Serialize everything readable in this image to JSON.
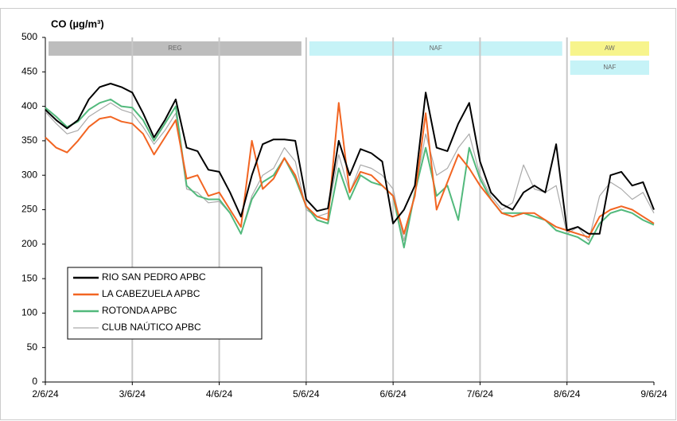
{
  "chart_data": {
    "type": "line",
    "title": "CO (µg/m³)",
    "categories": [
      "2/6/24",
      null,
      null,
      null,
      null,
      null,
      null,
      null,
      "3/6/24",
      null,
      null,
      null,
      null,
      null,
      null,
      null,
      "4/6/24",
      null,
      null,
      null,
      null,
      null,
      null,
      null,
      "5/6/24",
      null,
      null,
      null,
      null,
      null,
      null,
      null,
      "6/6/24",
      null,
      null,
      null,
      null,
      null,
      null,
      null,
      "7/6/24",
      null,
      null,
      null,
      null,
      null,
      null,
      null,
      "8/6/24",
      null,
      null,
      null,
      null,
      null,
      null,
      null,
      "9/6/24"
    ],
    "series": [
      {
        "name": "RIO SAN PEDRO APBC",
        "color": "#000000",
        "values": [
          395,
          380,
          368,
          380,
          410,
          428,
          433,
          428,
          420,
          390,
          355,
          380,
          410,
          340,
          335,
          308,
          305,
          275,
          240,
          300,
          345,
          352,
          352,
          350,
          265,
          248,
          252,
          350,
          300,
          338,
          332,
          320,
          230,
          250,
          285,
          420,
          340,
          335,
          375,
          405,
          320,
          275,
          258,
          250,
          275,
          285,
          275,
          345,
          220,
          225,
          215,
          215,
          300,
          305,
          285,
          290,
          250
        ]
      },
      {
        "name": "LA CABEZUELA  APBC",
        "color": "#f26522",
        "values": [
          355,
          340,
          333,
          350,
          370,
          382,
          385,
          378,
          375,
          360,
          330,
          355,
          380,
          295,
          300,
          270,
          275,
          250,
          225,
          350,
          280,
          295,
          325,
          300,
          255,
          240,
          235,
          405,
          275,
          305,
          300,
          285,
          270,
          215,
          270,
          390,
          250,
          290,
          330,
          310,
          285,
          265,
          245,
          240,
          245,
          245,
          235,
          225,
          220,
          215,
          210,
          240,
          250,
          255,
          250,
          240,
          230
        ]
      },
      {
        "name": "ROTONDA  APBC",
        "color": "#52b97c",
        "values": [
          398,
          385,
          370,
          378,
          395,
          405,
          410,
          400,
          398,
          380,
          350,
          375,
          400,
          285,
          270,
          265,
          265,
          245,
          215,
          265,
          290,
          300,
          325,
          295,
          255,
          235,
          230,
          310,
          265,
          300,
          290,
          285,
          270,
          195,
          275,
          340,
          270,
          285,
          235,
          340,
          295,
          265,
          245,
          245,
          245,
          240,
          235,
          220,
          215,
          210,
          200,
          230,
          245,
          250,
          245,
          235,
          228
        ]
      },
      {
        "name": "CLUB NAÚTICO  APBC",
        "color": "#aaaaaa",
        "values": [
          392,
          375,
          360,
          365,
          385,
          395,
          405,
          395,
          390,
          370,
          345,
          365,
          390,
          280,
          275,
          260,
          262,
          245,
          215,
          270,
          300,
          310,
          340,
          320,
          250,
          240,
          245,
          330,
          275,
          315,
          310,
          300,
          280,
          205,
          275,
          360,
          300,
          310,
          340,
          360,
          300,
          270,
          250,
          260,
          315,
          280,
          275,
          285,
          215,
          225,
          205,
          270,
          290,
          280,
          265,
          275,
          245
        ]
      }
    ],
    "ylim": [
      0,
      500
    ],
    "yticks": [
      0,
      50,
      100,
      150,
      200,
      250,
      300,
      350,
      400,
      450,
      500
    ],
    "grid": true,
    "bands": [
      {
        "label": "REG",
        "color": "#bdbdbd",
        "from": "2/6/24",
        "to": "5/6/24"
      },
      {
        "label": "NAF",
        "color": "#c6f3f7",
        "from": "5/6/24",
        "to": "8/6/24"
      },
      {
        "label": "AW",
        "color": "#f7f48c",
        "from": "8/6/24",
        "to": "9/6/24"
      },
      {
        "label": "NAF",
        "color": "#c6f3f7",
        "from": "8/6/24",
        "to": "9/6/24"
      }
    ]
  }
}
